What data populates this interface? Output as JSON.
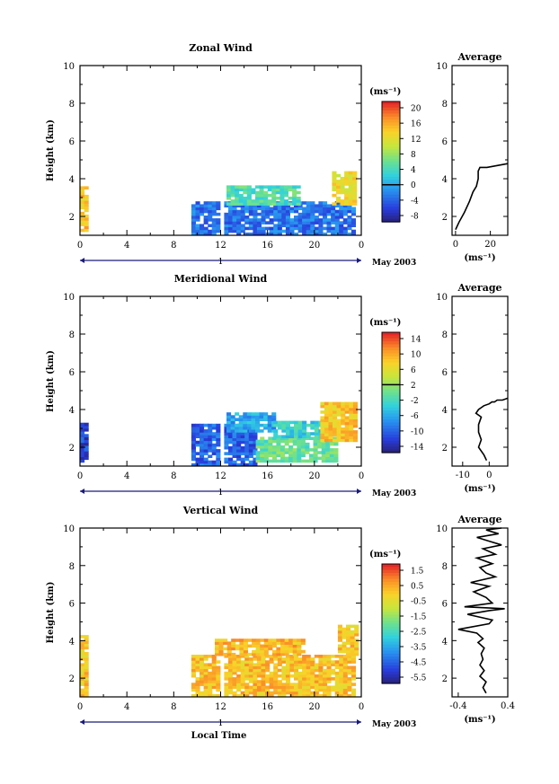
{
  "chart_data": [
    {
      "type": "heatmap",
      "title": "Zonal Wind",
      "ylabel": "Height (km)",
      "xlabel": "",
      "x_ticks": [
        "0",
        "4",
        "8",
        "12",
        "16",
        "20",
        "0"
      ],
      "y_ticks": [
        "2",
        "4",
        "6",
        "8",
        "10"
      ],
      "xlim": [
        0,
        24
      ],
      "ylim": [
        1,
        10
      ],
      "date_axis": {
        "tick": "1",
        "label": "May 2003"
      },
      "colorbar": {
        "unit": "(ms⁻¹)",
        "ticks": [
          "20",
          "16",
          "12",
          "8",
          "4",
          "0",
          "-4",
          "-8"
        ],
        "min": -10,
        "max": 22,
        "contour": 0
      },
      "regions": [
        {
          "x0": 0.0,
          "x1": 0.5,
          "y0": 1.2,
          "y1": 3.5,
          "v": 15
        },
        {
          "x0": 9.5,
          "x1": 23.5,
          "y0": 1.0,
          "y1": 2.8,
          "v": -3
        },
        {
          "x0": 12.5,
          "x1": 18.5,
          "y0": 2.6,
          "y1": 3.6,
          "v": 5
        },
        {
          "x0": 21.5,
          "x1": 23.5,
          "y0": 2.6,
          "y1": 4.3,
          "v": 13
        }
      ],
      "profile": {
        "title": "Average",
        "xlabel": "(ms⁻¹)",
        "x_ticks": [
          "0",
          "20"
        ],
        "y_ticks": [
          "2",
          "4",
          "6",
          "8",
          "10"
        ],
        "xlim": [
          -2,
          30
        ],
        "ylim": [
          1,
          10
        ],
        "x": [
          0,
          2,
          5,
          8,
          10,
          12,
          13,
          13,
          14,
          18,
          24,
          30
        ],
        "y": [
          1.3,
          1.7,
          2.2,
          2.8,
          3.3,
          3.6,
          4.0,
          4.4,
          4.6,
          4.6,
          4.7,
          4.8
        ]
      }
    },
    {
      "type": "heatmap",
      "title": "Meridional Wind",
      "ylabel": "Height (km)",
      "xlabel": "",
      "x_ticks": [
        "0",
        "4",
        "8",
        "12",
        "16",
        "20",
        "0"
      ],
      "y_ticks": [
        "2",
        "4",
        "6",
        "8",
        "10"
      ],
      "xlim": [
        0,
        24
      ],
      "ylim": [
        1,
        10
      ],
      "date_axis": {
        "tick": "1",
        "label": "May 2003"
      },
      "colorbar": {
        "unit": "(ms⁻¹)",
        "ticks": [
          "14",
          "10",
          "6",
          "2",
          "-2",
          "-6",
          "-10",
          "-14"
        ],
        "min": -16,
        "max": 16,
        "contour": 2
      },
      "regions": [
        {
          "x0": 0.0,
          "x1": 0.5,
          "y0": 1.2,
          "y1": 3.3,
          "v": -12
        },
        {
          "x0": 9.5,
          "x1": 15.0,
          "y0": 1.0,
          "y1": 3.2,
          "v": -10
        },
        {
          "x0": 12.5,
          "x1": 16.5,
          "y0": 2.8,
          "y1": 3.8,
          "v": -6
        },
        {
          "x0": 15.0,
          "x1": 22.0,
          "y0": 1.2,
          "y1": 2.5,
          "v": 0
        },
        {
          "x0": 16.5,
          "x1": 21.0,
          "y0": 2.5,
          "y1": 3.4,
          "v": -3
        },
        {
          "x0": 20.5,
          "x1": 23.5,
          "y0": 2.3,
          "y1": 4.4,
          "v": 9
        }
      ],
      "profile": {
        "title": "Average",
        "xlabel": "(ms⁻¹)",
        "x_ticks": [
          "-10",
          "0"
        ],
        "y_ticks": [
          "2",
          "4",
          "6",
          "8",
          "10"
        ],
        "xlim": [
          -14,
          7
        ],
        "ylim": [
          1,
          10
        ],
        "x": [
          -1,
          -2,
          -4,
          -3,
          -4,
          -4,
          -3,
          -5,
          -4,
          -3,
          -2,
          0,
          1,
          2,
          3,
          5,
          7
        ],
        "y": [
          1.3,
          1.6,
          2.0,
          2.4,
          2.8,
          3.2,
          3.6,
          3.8,
          4.0,
          4.1,
          4.2,
          4.3,
          4.4,
          4.4,
          4.5,
          4.5,
          4.6
        ]
      }
    },
    {
      "type": "heatmap",
      "title": "Vertical Wind",
      "ylabel": "Height (km)",
      "xlabel": "Local Time",
      "x_ticks": [
        "0",
        "4",
        "8",
        "12",
        "16",
        "20",
        "0"
      ],
      "y_ticks": [
        "2",
        "4",
        "6",
        "8",
        "10"
      ],
      "xlim": [
        0,
        24
      ],
      "ylim": [
        1,
        10
      ],
      "date_axis": {
        "tick": "1",
        "label": "May 2003"
      },
      "colorbar": {
        "unit": "(ms⁻¹)",
        "ticks": [
          "1.5",
          "0.5",
          "-0.5",
          "-1.5",
          "-2.5",
          "-3.5",
          "-4.5",
          "-5.5"
        ],
        "min": -6,
        "max": 2
      },
      "regions": [
        {
          "x0": 0.0,
          "x1": 0.5,
          "y0": 1.0,
          "y1": 4.2,
          "v": 0.2
        },
        {
          "x0": 9.5,
          "x1": 23.5,
          "y0": 1.0,
          "y1": 3.2,
          "v": 0.3
        },
        {
          "x0": 11.5,
          "x1": 19.0,
          "y0": 3.2,
          "y1": 4.0,
          "v": 0.4
        },
        {
          "x0": 22.0,
          "x1": 23.5,
          "y0": 3.2,
          "y1": 4.8,
          "v": 0.2
        }
      ],
      "profile": {
        "title": "Average",
        "xlabel": "(ms⁻¹)",
        "x_ticks": [
          "-0.4",
          "0.4"
        ],
        "y_ticks": [
          "2",
          "4",
          "6",
          "8",
          "10"
        ],
        "xlim": [
          -0.5,
          0.4
        ],
        "ylim": [
          1,
          10
        ],
        "x": [
          0.05,
          0.0,
          0.05,
          -0.05,
          0.02,
          -0.05,
          0.0,
          -0.03,
          0.02,
          -0.08,
          0.0,
          -0.1,
          -0.4,
          0.1,
          0.15,
          -0.25,
          0.1,
          0.35,
          -0.3,
          0.15,
          0.05,
          -0.15,
          0.1,
          -0.2,
          0.2,
          0.05,
          -0.05,
          0.15,
          -0.1,
          0.2,
          0.0,
          0.3,
          0.1,
          -0.1,
          0.25,
          0.05,
          0.3
        ],
        "y": [
          1.2,
          1.5,
          1.8,
          2.1,
          2.4,
          2.7,
          3.0,
          3.3,
          3.6,
          3.9,
          4.1,
          4.4,
          4.6,
          4.9,
          5.1,
          5.4,
          5.6,
          5.7,
          5.8,
          6.0,
          6.3,
          6.6,
          6.9,
          7.1,
          7.4,
          7.6,
          7.9,
          8.1,
          8.4,
          8.6,
          8.9,
          9.1,
          9.3,
          9.5,
          9.7,
          9.9,
          10.0
        ]
      }
    }
  ]
}
